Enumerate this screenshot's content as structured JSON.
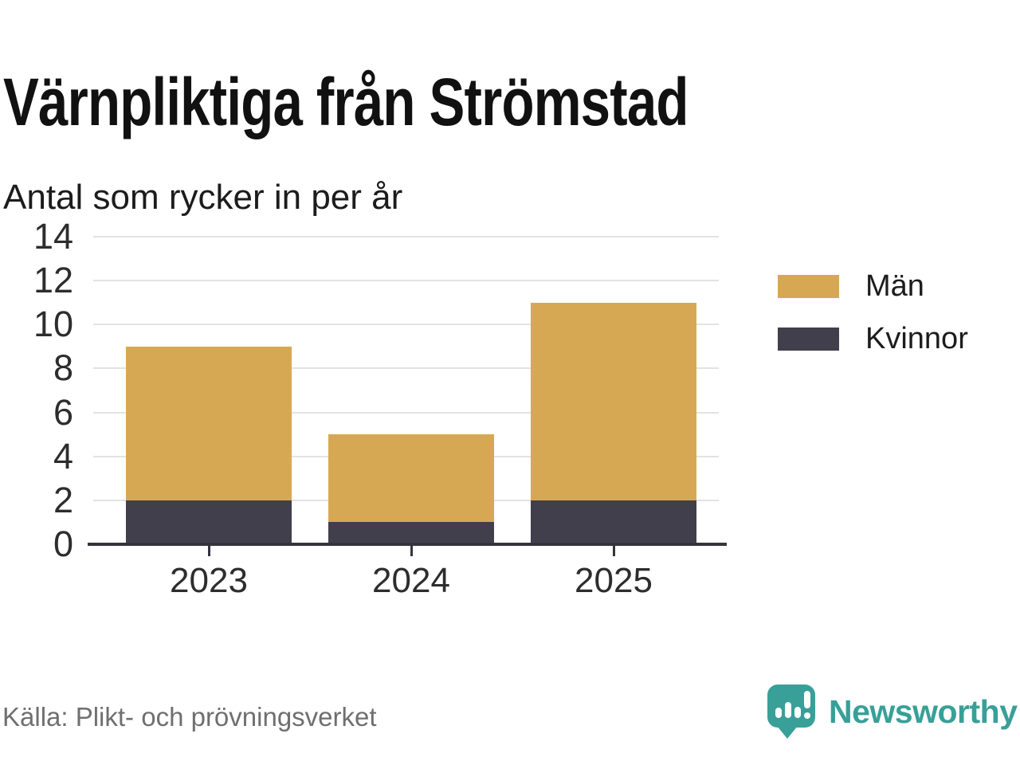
{
  "header": {
    "title": "Värnpliktiga från Strömstad",
    "subtitle": "Antal som rycker in per år"
  },
  "chart_data": {
    "type": "bar",
    "stacked": true,
    "title": "Värnpliktiga från Strömstad",
    "subtitle": "Antal som rycker in per år",
    "categories": [
      "2023",
      "2024",
      "2025"
    ],
    "series": [
      {
        "name": "Män",
        "color": "#d7a853",
        "values": [
          7,
          4,
          9
        ]
      },
      {
        "name": "Kvinnor",
        "color": "#413f4c",
        "values": [
          2,
          1,
          2
        ]
      }
    ],
    "stack_order_bottom_to_top": [
      "Kvinnor",
      "Män"
    ],
    "stack_totals": [
      9,
      5,
      11
    ],
    "xlabel": "",
    "ylabel": "",
    "ylim": [
      0,
      14
    ],
    "y_ticks": [
      0,
      2,
      4,
      6,
      8,
      10,
      12,
      14
    ],
    "grid": "horizontal",
    "legend_position": "right"
  },
  "footer": {
    "source": "Källa: Plikt- och prövningsverket",
    "brand": "Newsworthy"
  },
  "colors": {
    "men": "#d7a853",
    "women": "#413f4c",
    "grid": "#e3e3e3",
    "axis": "#35343e",
    "title_text": "#111111",
    "muted_text": "#6f6f6f",
    "brand_teal": "#38a098"
  }
}
